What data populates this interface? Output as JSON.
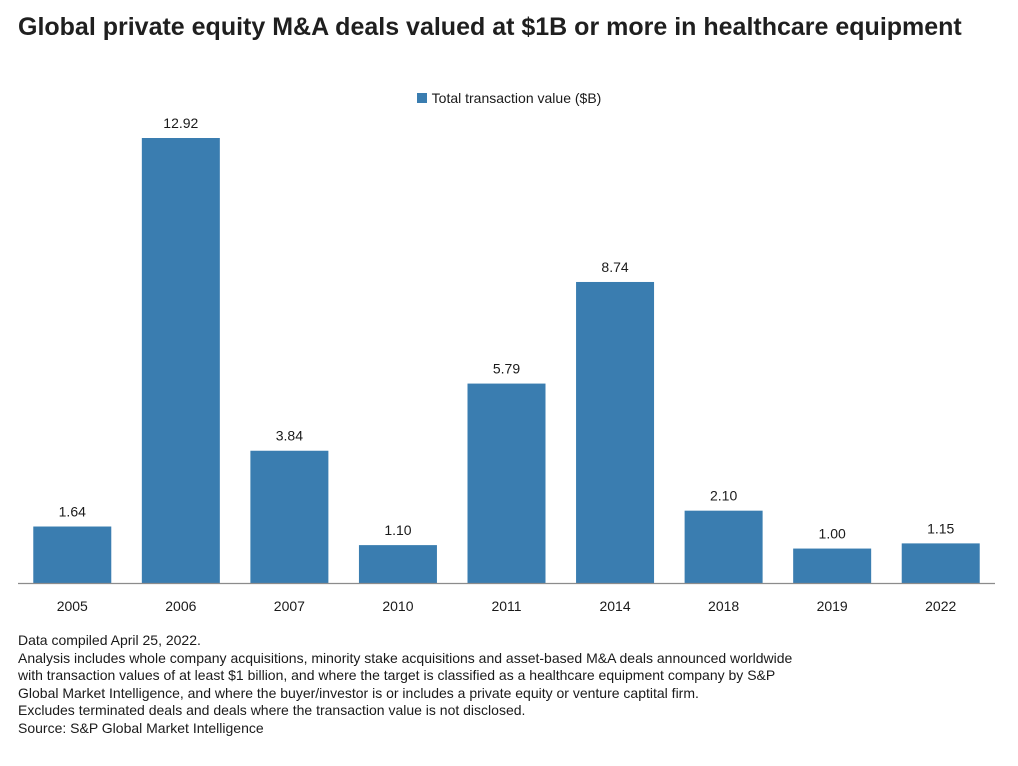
{
  "title": "Global private equity M&A deals valued at $1B or more in healthcare equipment",
  "colors": {
    "bar": "#3a7db0",
    "axis": "#8c8c8c"
  },
  "chart_data": {
    "type": "bar",
    "title": "Global private equity M&A deals valued at $1B or more in healthcare equipment",
    "categories": [
      "2005",
      "2006",
      "2007",
      "2010",
      "2011",
      "2014",
      "2018",
      "2019",
      "2022"
    ],
    "series": [
      {
        "name": "Total transaction value ($B)",
        "values": [
          1.64,
          12.92,
          3.84,
          1.1,
          5.79,
          8.74,
          2.1,
          1.0,
          1.15
        ],
        "labels": [
          "1.64",
          "12.92",
          "3.84",
          "1.10",
          "5.79",
          "8.74",
          "2.10",
          "1.00",
          "1.15"
        ]
      }
    ],
    "xlabel": "",
    "ylabel": "",
    "ylim": [
      0,
      12.92
    ],
    "grid": false,
    "legend": "top-center"
  },
  "notes": [
    "Data compiled April 25, 2022.",
    "Analysis includes whole company acquisitions, minority stake acquisitions and asset-based M&A deals announced worldwide",
    "with transaction values of at least $1 billion, and where the target is classified as a healthcare equipment company by S&P",
    "Global Market Intelligence, and where the buyer/investor is or includes a private equity or venture captital firm.",
    "Excludes terminated deals and deals where the transaction value is not disclosed.",
    "Source: S&P Global Market Intelligence"
  ]
}
